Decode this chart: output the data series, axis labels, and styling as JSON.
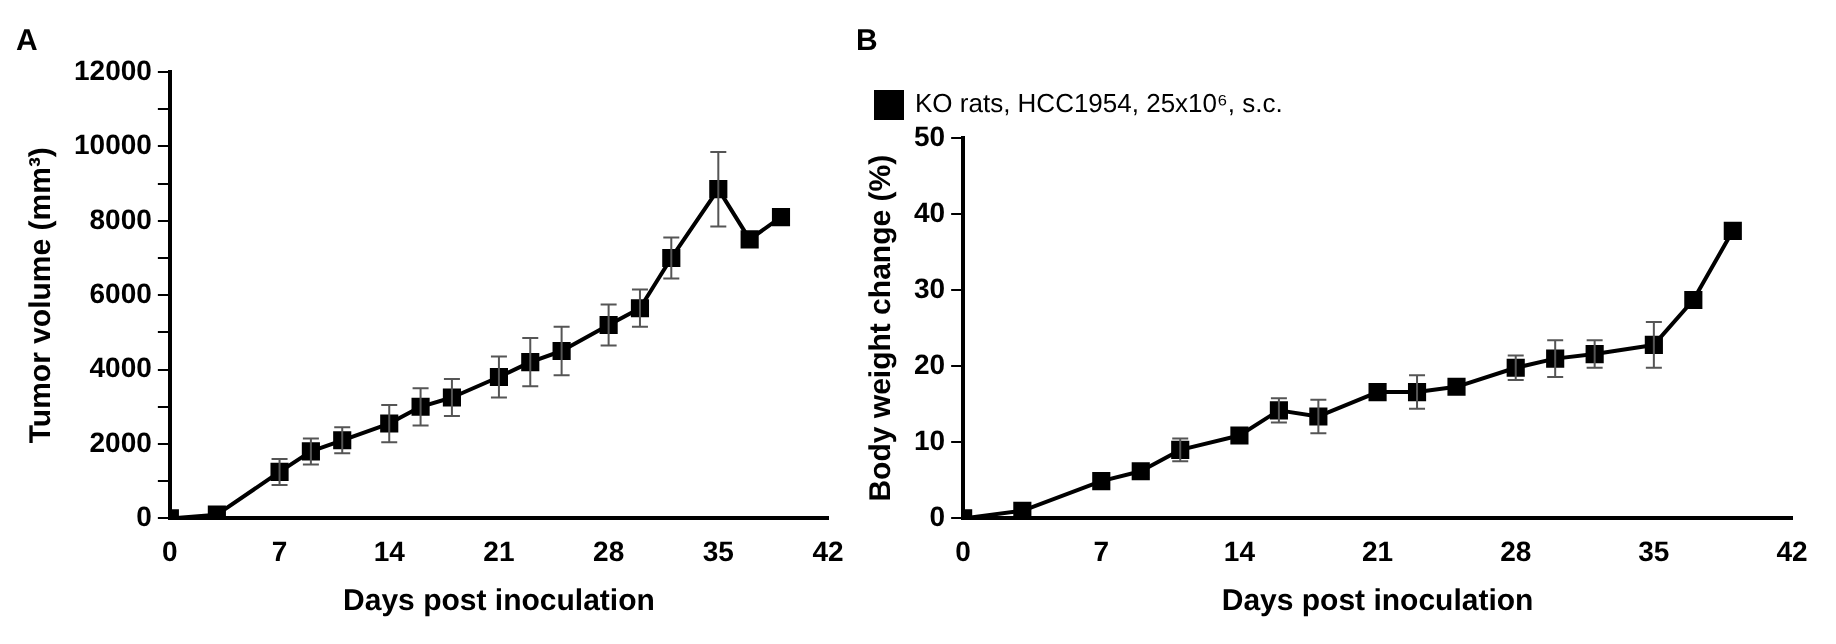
{
  "chart_data": [
    {
      "type": "line",
      "title": "A",
      "xlabel": "Days post inoculation",
      "ylabel": "Tumor volume (mm³)",
      "x": [
        0,
        3,
        7,
        9,
        11,
        14,
        16,
        18,
        21,
        23,
        25,
        28,
        30,
        32,
        35,
        37,
        39
      ],
      "series": [
        {
          "color": "#000000",
          "values": [
            0,
            100,
            1250,
            1800,
            2100,
            2550,
            3000,
            3250,
            3800,
            4200,
            4500,
            5200,
            5650,
            7000,
            8850,
            7500,
            8100
          ],
          "errors": [
            null,
            null,
            350,
            350,
            350,
            500,
            500,
            500,
            550,
            650,
            650,
            550,
            500,
            550,
            1000,
            null,
            null
          ]
        }
      ],
      "xlim": [
        0,
        42
      ],
      "xticks": [
        0,
        7,
        14,
        21,
        28,
        35,
        42
      ],
      "ylim": [
        0,
        12000
      ],
      "yticks": [
        0,
        {
          "value": 1000,
          "label": null
        },
        2000,
        {
          "value": 3000,
          "label": null
        },
        4000,
        {
          "value": 5000,
          "label": null
        },
        6000,
        {
          "value": 7000,
          "label": null
        },
        8000,
        {
          "value": 9000,
          "label": null
        },
        10000,
        {
          "value": 11000,
          "label": null
        },
        12000
      ],
      "grid": false,
      "legend": false,
      "marker": "square",
      "line_style": "solid"
    },
    {
      "type": "line",
      "title": "B",
      "xlabel": "Days post inoculation",
      "ylabel": "Body weight change (%)",
      "x": [
        0,
        3,
        7,
        9,
        11,
        14,
        16,
        18,
        21,
        23,
        25,
        28,
        30,
        32,
        35,
        37,
        39
      ],
      "series": [
        {
          "name": "KO rats, HCC1954, 25x10⁶, s.c.",
          "color": "#000000",
          "values": [
            0,
            1,
            4.9,
            6.2,
            9,
            10.9,
            14.2,
            13.4,
            16.6,
            16.6,
            17.3,
            19.8,
            21,
            21.6,
            22.8,
            28.7,
            37.8
          ],
          "errors": [
            null,
            null,
            null,
            null,
            1.5,
            null,
            1.6,
            2.2,
            null,
            2.2,
            null,
            1.6,
            2.4,
            1.8,
            3,
            null,
            null
          ]
        }
      ],
      "xlim": [
        0,
        42
      ],
      "xticks": [
        0,
        7,
        14,
        21,
        28,
        35,
        42
      ],
      "ylim": [
        0,
        50
      ],
      "yticks": [
        0,
        10,
        20,
        30,
        40,
        50
      ],
      "grid": false,
      "legend": "top left",
      "marker": "square",
      "line_style": "solid"
    }
  ]
}
